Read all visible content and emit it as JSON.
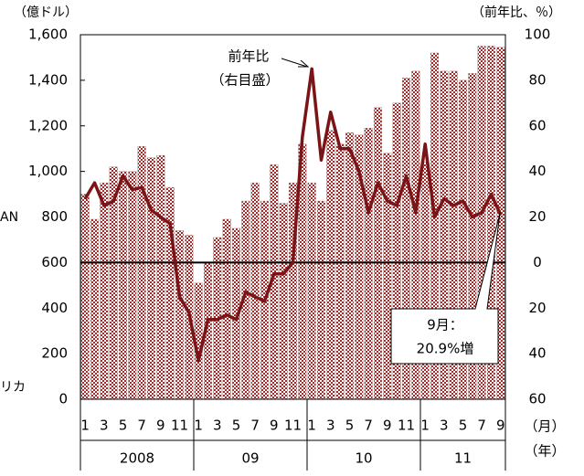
{
  "chart_data": {
    "type": "bar_line",
    "y_label": "（億ドル）",
    "y2_label": "（前年比、％）",
    "x_unit_label": "（月）",
    "x_group_unit_label": "（年）",
    "categories": [
      "1",
      null,
      "3",
      null,
      "5",
      null,
      "7",
      null,
      "9",
      null,
      "11",
      null,
      "1",
      null,
      "3",
      null,
      "5",
      null,
      "7",
      null,
      "9",
      null,
      "11",
      null,
      "1",
      null,
      "3",
      null,
      "5",
      null,
      "7",
      null,
      "9",
      null,
      "11",
      null,
      "1",
      null,
      "3",
      null,
      "5",
      null,
      "7",
      null,
      "9"
    ],
    "x_groups": [
      "2008",
      "09",
      "10",
      "11"
    ],
    "series": [
      {
        "type": "bar",
        "color": "#a52a2a",
        "values": [
          900,
          790,
          950,
          1020,
          1000,
          1000,
          1110,
          1060,
          1070,
          930,
          740,
          720,
          510,
          600,
          710,
          790,
          750,
          870,
          950,
          870,
          1030,
          860,
          950,
          1120,
          950,
          870,
          1180,
          1120,
          1170,
          1160,
          1190,
          1280,
          1080,
          1300,
          1410,
          1440,
          1040,
          1520,
          1440,
          1440,
          1400,
          1430,
          1550,
          1550,
          1545
        ]
      },
      {
        "type": "line",
        "axis": "y2",
        "name": "前年比",
        "color": "#7b1416",
        "values": [
          28,
          35,
          25,
          27,
          38,
          32,
          33,
          23,
          20,
          17,
          -15,
          -22,
          -43,
          -25,
          -25,
          -23,
          -25,
          -13,
          -15,
          -17,
          -5,
          -5,
          0,
          55,
          85,
          45,
          66,
          50,
          50,
          40,
          22,
          35,
          27,
          25,
          38,
          22,
          52,
          20,
          28,
          25,
          27,
          20,
          22,
          30,
          20.9
        ]
      }
    ],
    "ylim": [
      0,
      1600
    ],
    "yticks": [
      0,
      200,
      400,
      600,
      800,
      {
        "value": 1000,
        "label": "1,000"
      },
      {
        "value": 1200,
        "label": "1,200"
      },
      {
        "value": 1400,
        "label": "1,400"
      },
      {
        "value": 1600,
        "label": "1,600"
      }
    ],
    "y2lim": [
      -60,
      100
    ],
    "y2ticks": [
      100,
      80,
      60,
      40,
      20,
      0,
      {
        "value": -20,
        "label": "20"
      },
      {
        "value": -40,
        "label": "40"
      },
      {
        "value": -60,
        "label": "60"
      }
    ],
    "y2_zero_line": true,
    "line_annotation": {
      "lines": [
        "前年比",
        "（右目盛）"
      ]
    },
    "callout": {
      "lines": [
        "9月：",
        "20.9%増"
      ]
    },
    "clipped_texts": [
      "AN",
      "リカ"
    ]
  }
}
